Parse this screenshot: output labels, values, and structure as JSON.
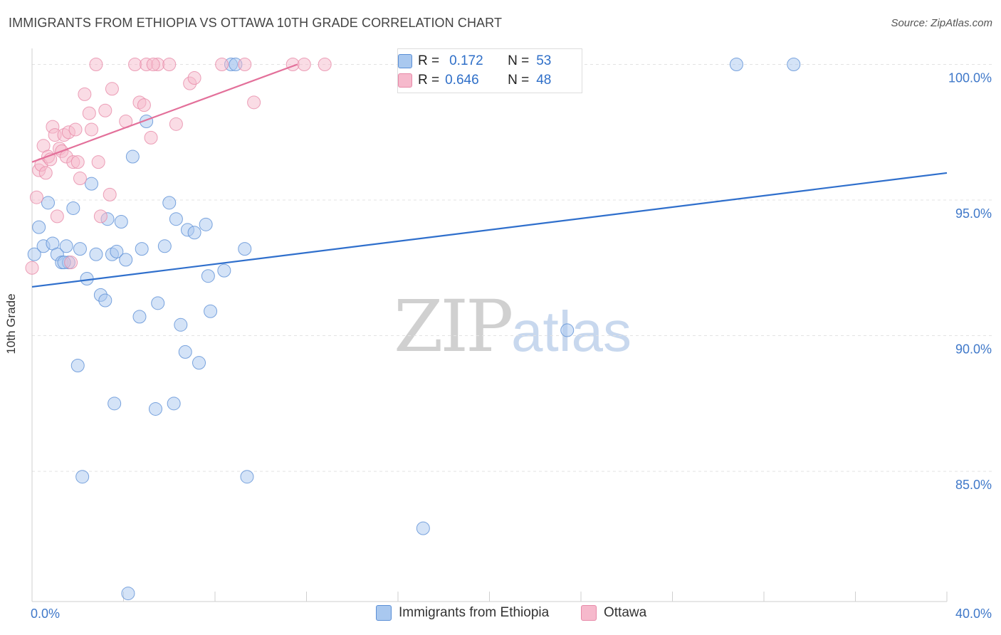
{
  "header": {
    "title": "IMMIGRANTS FROM ETHIOPIA VS OTTAWA 10TH GRADE CORRELATION CHART",
    "source": "Source: ZipAtlas.com"
  },
  "watermark": {
    "zip": "ZIP",
    "atlas": "atlas"
  },
  "legend": {
    "blue": {
      "r_label": "R =",
      "r_value": "0.172",
      "n_label": "N =",
      "n_value": "53"
    },
    "pink": {
      "r_label": "R =",
      "r_value": "0.646",
      "n_label": "N =",
      "n_value": "48"
    }
  },
  "bottom_legend": {
    "blue_label": "Immigrants from Ethiopia",
    "pink_label": "Ottawa"
  },
  "colors": {
    "blue_fill": "#a9c8ef",
    "blue_stroke": "#5b8fd6",
    "blue_line": "#2f6fcc",
    "pink_fill": "#f6b9cc",
    "pink_stroke": "#e789a8",
    "pink_line": "#e3709a",
    "axis_label": "#3f78c9",
    "grid": "#e3e3e3"
  },
  "chart_data": {
    "type": "scatter",
    "title": "IMMIGRANTS FROM ETHIOPIA VS OTTAWA 10TH GRADE CORRELATION CHART",
    "xlabel": "",
    "ylabel": "10th Grade",
    "xlim": [
      0,
      40
    ],
    "ylim": [
      80.2,
      100.8
    ],
    "x_tick_labels": [
      "0.0%",
      "40.0%"
    ],
    "y_ticks": [
      85,
      90,
      95,
      100
    ],
    "y_tick_labels": [
      "85.0%",
      "90.0%",
      "95.0%",
      "100.0%"
    ],
    "grid": true,
    "series": [
      {
        "name": "Immigrants from Ethiopia",
        "color": "blue",
        "trend": {
          "x": [
            0,
            40
          ],
          "y": [
            91.8,
            96.0
          ]
        },
        "points": [
          [
            0.1,
            93.0
          ],
          [
            0.3,
            94.0
          ],
          [
            0.5,
            93.3
          ],
          [
            0.7,
            94.9
          ],
          [
            0.9,
            93.4
          ],
          [
            1.1,
            93.0
          ],
          [
            1.3,
            92.7
          ],
          [
            1.5,
            93.3
          ],
          [
            1.6,
            92.7
          ],
          [
            1.8,
            94.7
          ],
          [
            2.1,
            93.2
          ],
          [
            2.4,
            92.1
          ],
          [
            2.6,
            95.6
          ],
          [
            2.8,
            93.0
          ],
          [
            3.0,
            91.5
          ],
          [
            3.2,
            91.3
          ],
          [
            3.3,
            94.3
          ],
          [
            3.5,
            93.0
          ],
          [
            3.7,
            93.1
          ],
          [
            3.9,
            94.2
          ],
          [
            4.1,
            92.8
          ],
          [
            4.4,
            96.6
          ],
          [
            4.7,
            90.7
          ],
          [
            4.8,
            93.2
          ],
          [
            5.0,
            97.9
          ],
          [
            5.4,
            87.3
          ],
          [
            5.5,
            91.2
          ],
          [
            5.8,
            93.3
          ],
          [
            6.0,
            94.9
          ],
          [
            6.3,
            94.3
          ],
          [
            6.5,
            90.4
          ],
          [
            6.7,
            89.4
          ],
          [
            6.8,
            93.9
          ],
          [
            7.1,
            93.8
          ],
          [
            7.3,
            89.0
          ],
          [
            7.6,
            94.1
          ],
          [
            7.7,
            92.2
          ],
          [
            7.8,
            90.9
          ],
          [
            8.7,
            100.0
          ],
          [
            8.9,
            100.0
          ],
          [
            9.3,
            93.2
          ],
          [
            9.4,
            84.8
          ],
          [
            8.4,
            92.4
          ],
          [
            2.0,
            88.9
          ],
          [
            3.6,
            87.5
          ],
          [
            6.2,
            87.5
          ],
          [
            2.2,
            84.8
          ],
          [
            4.2,
            80.5
          ],
          [
            17.1,
            82.9
          ],
          [
            23.4,
            90.2
          ],
          [
            30.8,
            100.0
          ],
          [
            33.3,
            100.0
          ],
          [
            1.4,
            92.7
          ]
        ]
      },
      {
        "name": "Ottawa",
        "color": "pink",
        "trend": {
          "x": [
            0,
            11.6
          ],
          "y": [
            96.4,
            100.0
          ]
        },
        "points": [
          [
            0.0,
            92.5
          ],
          [
            0.2,
            95.1
          ],
          [
            0.3,
            96.1
          ],
          [
            0.4,
            96.3
          ],
          [
            0.5,
            97.0
          ],
          [
            0.6,
            96.0
          ],
          [
            0.7,
            96.6
          ],
          [
            0.8,
            96.5
          ],
          [
            0.9,
            97.7
          ],
          [
            1.0,
            97.4
          ],
          [
            1.1,
            94.4
          ],
          [
            1.2,
            96.9
          ],
          [
            1.3,
            96.8
          ],
          [
            1.4,
            97.4
          ],
          [
            1.5,
            96.6
          ],
          [
            1.6,
            97.5
          ],
          [
            1.7,
            92.7
          ],
          [
            1.8,
            96.4
          ],
          [
            1.9,
            97.6
          ],
          [
            2.0,
            96.4
          ],
          [
            2.1,
            95.8
          ],
          [
            2.3,
            98.9
          ],
          [
            2.5,
            98.2
          ],
          [
            2.6,
            97.6
          ],
          [
            2.8,
            100.0
          ],
          [
            2.9,
            96.4
          ],
          [
            3.0,
            94.4
          ],
          [
            3.2,
            98.3
          ],
          [
            3.4,
            95.2
          ],
          [
            3.5,
            99.1
          ],
          [
            4.1,
            97.9
          ],
          [
            4.5,
            100.0
          ],
          [
            4.7,
            98.6
          ],
          [
            4.9,
            98.5
          ],
          [
            5.0,
            100.0
          ],
          [
            5.2,
            97.3
          ],
          [
            5.5,
            100.0
          ],
          [
            6.0,
            100.0
          ],
          [
            6.3,
            97.8
          ],
          [
            6.9,
            99.3
          ],
          [
            7.1,
            99.5
          ],
          [
            8.3,
            100.0
          ],
          [
            9.3,
            100.0
          ],
          [
            9.7,
            98.6
          ],
          [
            11.4,
            100.0
          ],
          [
            11.9,
            100.0
          ],
          [
            12.8,
            100.0
          ],
          [
            5.3,
            100.0
          ]
        ]
      }
    ]
  }
}
